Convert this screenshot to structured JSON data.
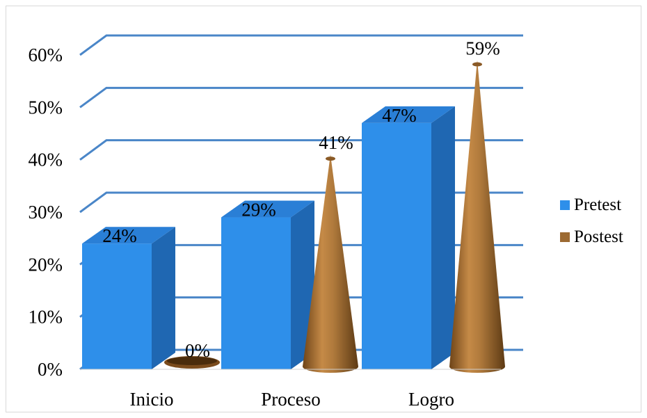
{
  "chart_data": {
    "type": "bar",
    "categories": [
      "Inicio",
      "Proceso",
      "Logro"
    ],
    "series": [
      {
        "name": "Pretest",
        "values": [
          24,
          29,
          47
        ],
        "labels": [
          "24%",
          "29%",
          "47%"
        ],
        "color": "#2E8FEA"
      },
      {
        "name": "Postest",
        "values": [
          0,
          41,
          59
        ],
        "labels": [
          "0%",
          "41%",
          "59%"
        ],
        "color": "#9C6A32"
      }
    ],
    "ylim": [
      0,
      60
    ],
    "yticks": [
      "0%",
      "10%",
      "20%",
      "30%",
      "40%",
      "50%",
      "60%"
    ],
    "grid": true,
    "legend_position": "right",
    "gridline_color": "#4A86C8"
  }
}
